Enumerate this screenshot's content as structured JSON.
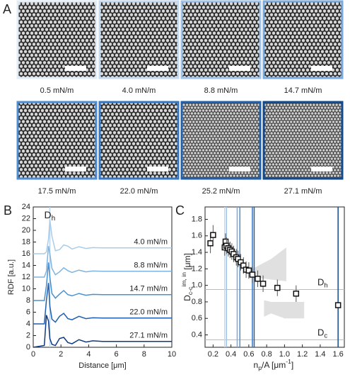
{
  "panel_a": {
    "label": "A",
    "images": [
      {
        "caption": "0.5 mN/m",
        "frame_color": "#e3edf7"
      },
      {
        "caption": "4.0 mN/m",
        "frame_color": "#c4daf0"
      },
      {
        "caption": "8.8 mN/m",
        "frame_color": "#9fc3e8"
      },
      {
        "caption": "14.7 mN/m",
        "frame_color": "#7aaade"
      },
      {
        "caption": "17.5 mN/m",
        "frame_color": "#4f8ed2"
      },
      {
        "caption": "22.0 mN/m",
        "frame_color": "#3577c2"
      },
      {
        "caption": "25.2 mN/m",
        "frame_color": "#2160ab"
      },
      {
        "caption": "27.1 mN/m",
        "frame_color": "#124a8e"
      }
    ]
  },
  "chart_data": [
    {
      "type": "line",
      "panel_label": "B",
      "ylabel": "RDF [a.u.]",
      "xlabel": "Distance [μm]",
      "xlim": [
        0,
        10
      ],
      "ylim": [
        0,
        24
      ],
      "xticks": [
        0,
        2,
        4,
        6,
        8,
        10
      ],
      "yticks": [
        0,
        2,
        4,
        6,
        8,
        10,
        12,
        14,
        16,
        18,
        20,
        22,
        24
      ],
      "annotation": {
        "x": 1.2,
        "color": "#b9d4ec",
        "parts": [
          {
            "text": "D"
          },
          {
            "text": "h",
            "shift": "sub"
          }
        ]
      },
      "x": [
        0,
        0.8,
        0.95,
        1.1,
        1.2,
        1.35,
        1.6,
        1.9,
        2.2,
        2.5,
        2.8,
        3.3,
        3.8,
        4.3,
        5,
        6,
        7,
        8,
        9,
        10
      ],
      "series": [
        {
          "name": "4.0 mN/m",
          "color": "#a9cce8",
          "values": [
            16,
            16,
            16.3,
            18.5,
            21.8,
            19,
            16.5,
            16.7,
            17.5,
            17.3,
            16.8,
            17.2,
            16.9,
            17.05,
            17,
            17,
            17,
            17,
            17,
            17
          ]
        },
        {
          "name": "8.8 mN/m",
          "color": "#7fb3e0",
          "values": [
            12,
            12,
            13,
            17.3,
            16,
            13.5,
            12.4,
            12.9,
            13.6,
            13.1,
            12.8,
            13.2,
            12.9,
            13.05,
            13,
            13,
            13,
            13,
            13,
            13
          ]
        },
        {
          "name": "14.7 mN/m",
          "color": "#4a90d0",
          "values": [
            8,
            8,
            10.5,
            14.5,
            12,
            9.2,
            8.4,
            9.1,
            9.7,
            9,
            8.8,
            9.2,
            8.9,
            9.05,
            9,
            9,
            9,
            9,
            9,
            9
          ]
        },
        {
          "name": "22.0 mN/m",
          "color": "#1f5fae",
          "values": [
            4,
            4,
            8,
            11,
            7,
            4.8,
            4.3,
            5.3,
            5.8,
            4.9,
            4.7,
            5.3,
            4.9,
            5.05,
            5,
            5,
            5,
            5,
            5,
            5
          ]
        },
        {
          "name": "27.1 mN/m",
          "color": "#0d3a80",
          "values": [
            0,
            0.3,
            5.5,
            4.5,
            1.5,
            0.5,
            0.3,
            1.5,
            1.7,
            0.8,
            0.6,
            1.3,
            0.9,
            1.1,
            1,
            1,
            1,
            1,
            1,
            1
          ]
        }
      ]
    },
    {
      "type": "scatter",
      "panel_label": "C",
      "ylabel_parts": [
        {
          "text": "D"
        },
        {
          "text": "c-c",
          "shift": "sub"
        },
        {
          "text": "im, in",
          "shift": "sup"
        },
        {
          "text": " [μm]"
        }
      ],
      "xlabel_parts": [
        {
          "text": "n"
        },
        {
          "text": "p",
          "shift": "sub"
        },
        {
          "text": "/A [μm"
        },
        {
          "text": "-1",
          "shift": "sup"
        },
        {
          "text": "]"
        }
      ],
      "xlim": [
        0.11,
        1.67
      ],
      "ylim": [
        0.25,
        1.95
      ],
      "xticks": [
        0.2,
        0.4,
        0.6,
        0.8,
        {
          "value": 1,
          "label": "1.0"
        },
        1.2,
        1.4,
        1.6
      ],
      "yticks": [
        0.4,
        0.6,
        0.8,
        {
          "value": 1,
          "label": "1.0"
        },
        1.2,
        1.4,
        1.6,
        1.8
      ],
      "hlines": [
        {
          "y": 0.95,
          "parts": [
            {
              "text": "D"
            },
            {
              "text": "h",
              "shift": "sub"
            }
          ]
        },
        {
          "y": 0.34,
          "parts": [
            {
              "text": "D"
            },
            {
              "text": "c",
              "shift": "sub"
            }
          ]
        }
      ],
      "vlines": [
        {
          "x": 0.33,
          "color": "#c4daf0"
        },
        {
          "x": 0.35,
          "color": "#9fc3e8"
        },
        {
          "x": 0.47,
          "color": "#7aaade"
        },
        {
          "x": 0.5,
          "color": "#4f8ed2"
        },
        {
          "x": 0.64,
          "color": "#3577c2"
        },
        {
          "x": 0.66,
          "color": "#2160ab"
        },
        {
          "x": 1.6,
          "color": "#124a8e"
        }
      ],
      "shaded_regions": [
        {
          "x": [
            0.64,
            0.85,
            1.02,
            1.02,
            0.85,
            0.64
          ],
          "y": [
            1.2,
            1.32,
            1.46,
            1.05,
            1.07,
            1.1
          ]
        },
        {
          "x": [
            0.77,
            0.85,
            1.0,
            1.22,
            1.22,
            1.0,
            0.85,
            0.77
          ],
          "y": [
            0.82,
            0.8,
            0.8,
            0.8,
            0.6,
            0.6,
            0.66,
            0.62
          ]
        }
      ],
      "x": [
        0.17,
        0.2,
        0.33,
        0.34,
        0.35,
        0.37,
        0.39,
        0.41,
        0.43,
        0.46,
        0.48,
        0.51,
        0.54,
        0.57,
        0.6,
        0.64,
        0.7,
        0.76,
        0.92,
        1.13,
        1.6
      ],
      "values": [
        1.51,
        1.61,
        1.46,
        1.53,
        1.48,
        1.45,
        1.43,
        1.41,
        1.38,
        1.34,
        1.32,
        1.28,
        1.24,
        1.19,
        1.18,
        1.13,
        1.08,
        1.02,
        0.97,
        0.9,
        0.76
      ],
      "errors": [
        0.12,
        0.12,
        0.1,
        0.1,
        0.1,
        0.1,
        0.1,
        0.1,
        0.1,
        0.1,
        0.1,
        0.1,
        0.1,
        0.1,
        0.1,
        0.1,
        0.1,
        0.1,
        0.1,
        0.1,
        0.03
      ]
    }
  ]
}
